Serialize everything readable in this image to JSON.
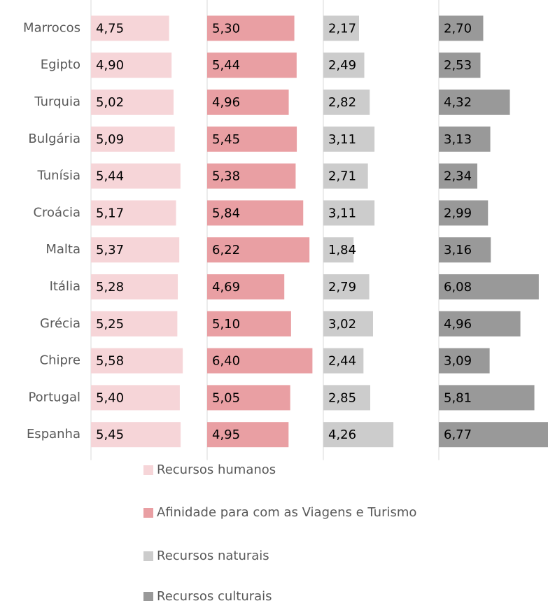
{
  "chart_data": {
    "type": "bar",
    "orientation": "horizontal",
    "layout": "small-multiples",
    "categories": [
      "Marrocos",
      "Egipto",
      "Turquia",
      "Bulgária",
      "Tunísia",
      "Croácia",
      "Malta",
      "Itália",
      "Grécia",
      "Chipre",
      "Portugal",
      "Espanha"
    ],
    "xlim": [
      0,
      7
    ],
    "series": [
      {
        "name": "Recursos humanos",
        "color": "#f6d5d8",
        "values": [
          4.75,
          4.9,
          5.02,
          5.09,
          5.44,
          5.17,
          5.37,
          5.28,
          5.25,
          5.58,
          5.4,
          5.45
        ],
        "value_labels": [
          "4,75",
          "4,90",
          "5,02",
          "5,09",
          "5,44",
          "5,17",
          "5,37",
          "5,28",
          "5,25",
          "5,58",
          "5,40",
          "5,45"
        ]
      },
      {
        "name": "Afinidade para com as Viagens e Turismo",
        "color": "#e99fa3",
        "values": [
          5.3,
          5.44,
          4.96,
          5.45,
          5.38,
          5.84,
          6.22,
          4.69,
          5.1,
          6.4,
          5.05,
          4.95
        ],
        "value_labels": [
          "5,30",
          "5,44",
          "4,96",
          "5,45",
          "5,38",
          "5,84",
          "6,22",
          "4,69",
          "5,10",
          "6,40",
          "5,05",
          "4,95"
        ]
      },
      {
        "name": "Recursos naturais",
        "color": "#cccccc",
        "values": [
          2.17,
          2.49,
          2.82,
          3.11,
          2.71,
          3.11,
          1.84,
          2.79,
          3.02,
          2.44,
          2.85,
          4.26
        ],
        "value_labels": [
          "2,17",
          "2,49",
          "2,82",
          "3,11",
          "2,71",
          "3,11",
          "1,84",
          "2,79",
          "3,02",
          "2,44",
          "2,85",
          "4,26"
        ]
      },
      {
        "name": "Recursos culturais",
        "color": "#999999",
        "values": [
          2.7,
          2.53,
          4.32,
          3.13,
          2.34,
          2.99,
          3.16,
          6.08,
          4.96,
          3.09,
          5.81,
          6.77
        ],
        "value_labels": [
          "2,70",
          "2,53",
          "4,32",
          "3,13",
          "2,34",
          "2,99",
          "3,16",
          "6,08",
          "4,96",
          "3,09",
          "5,81",
          "6,77"
        ]
      }
    ],
    "legend": "bottom"
  }
}
